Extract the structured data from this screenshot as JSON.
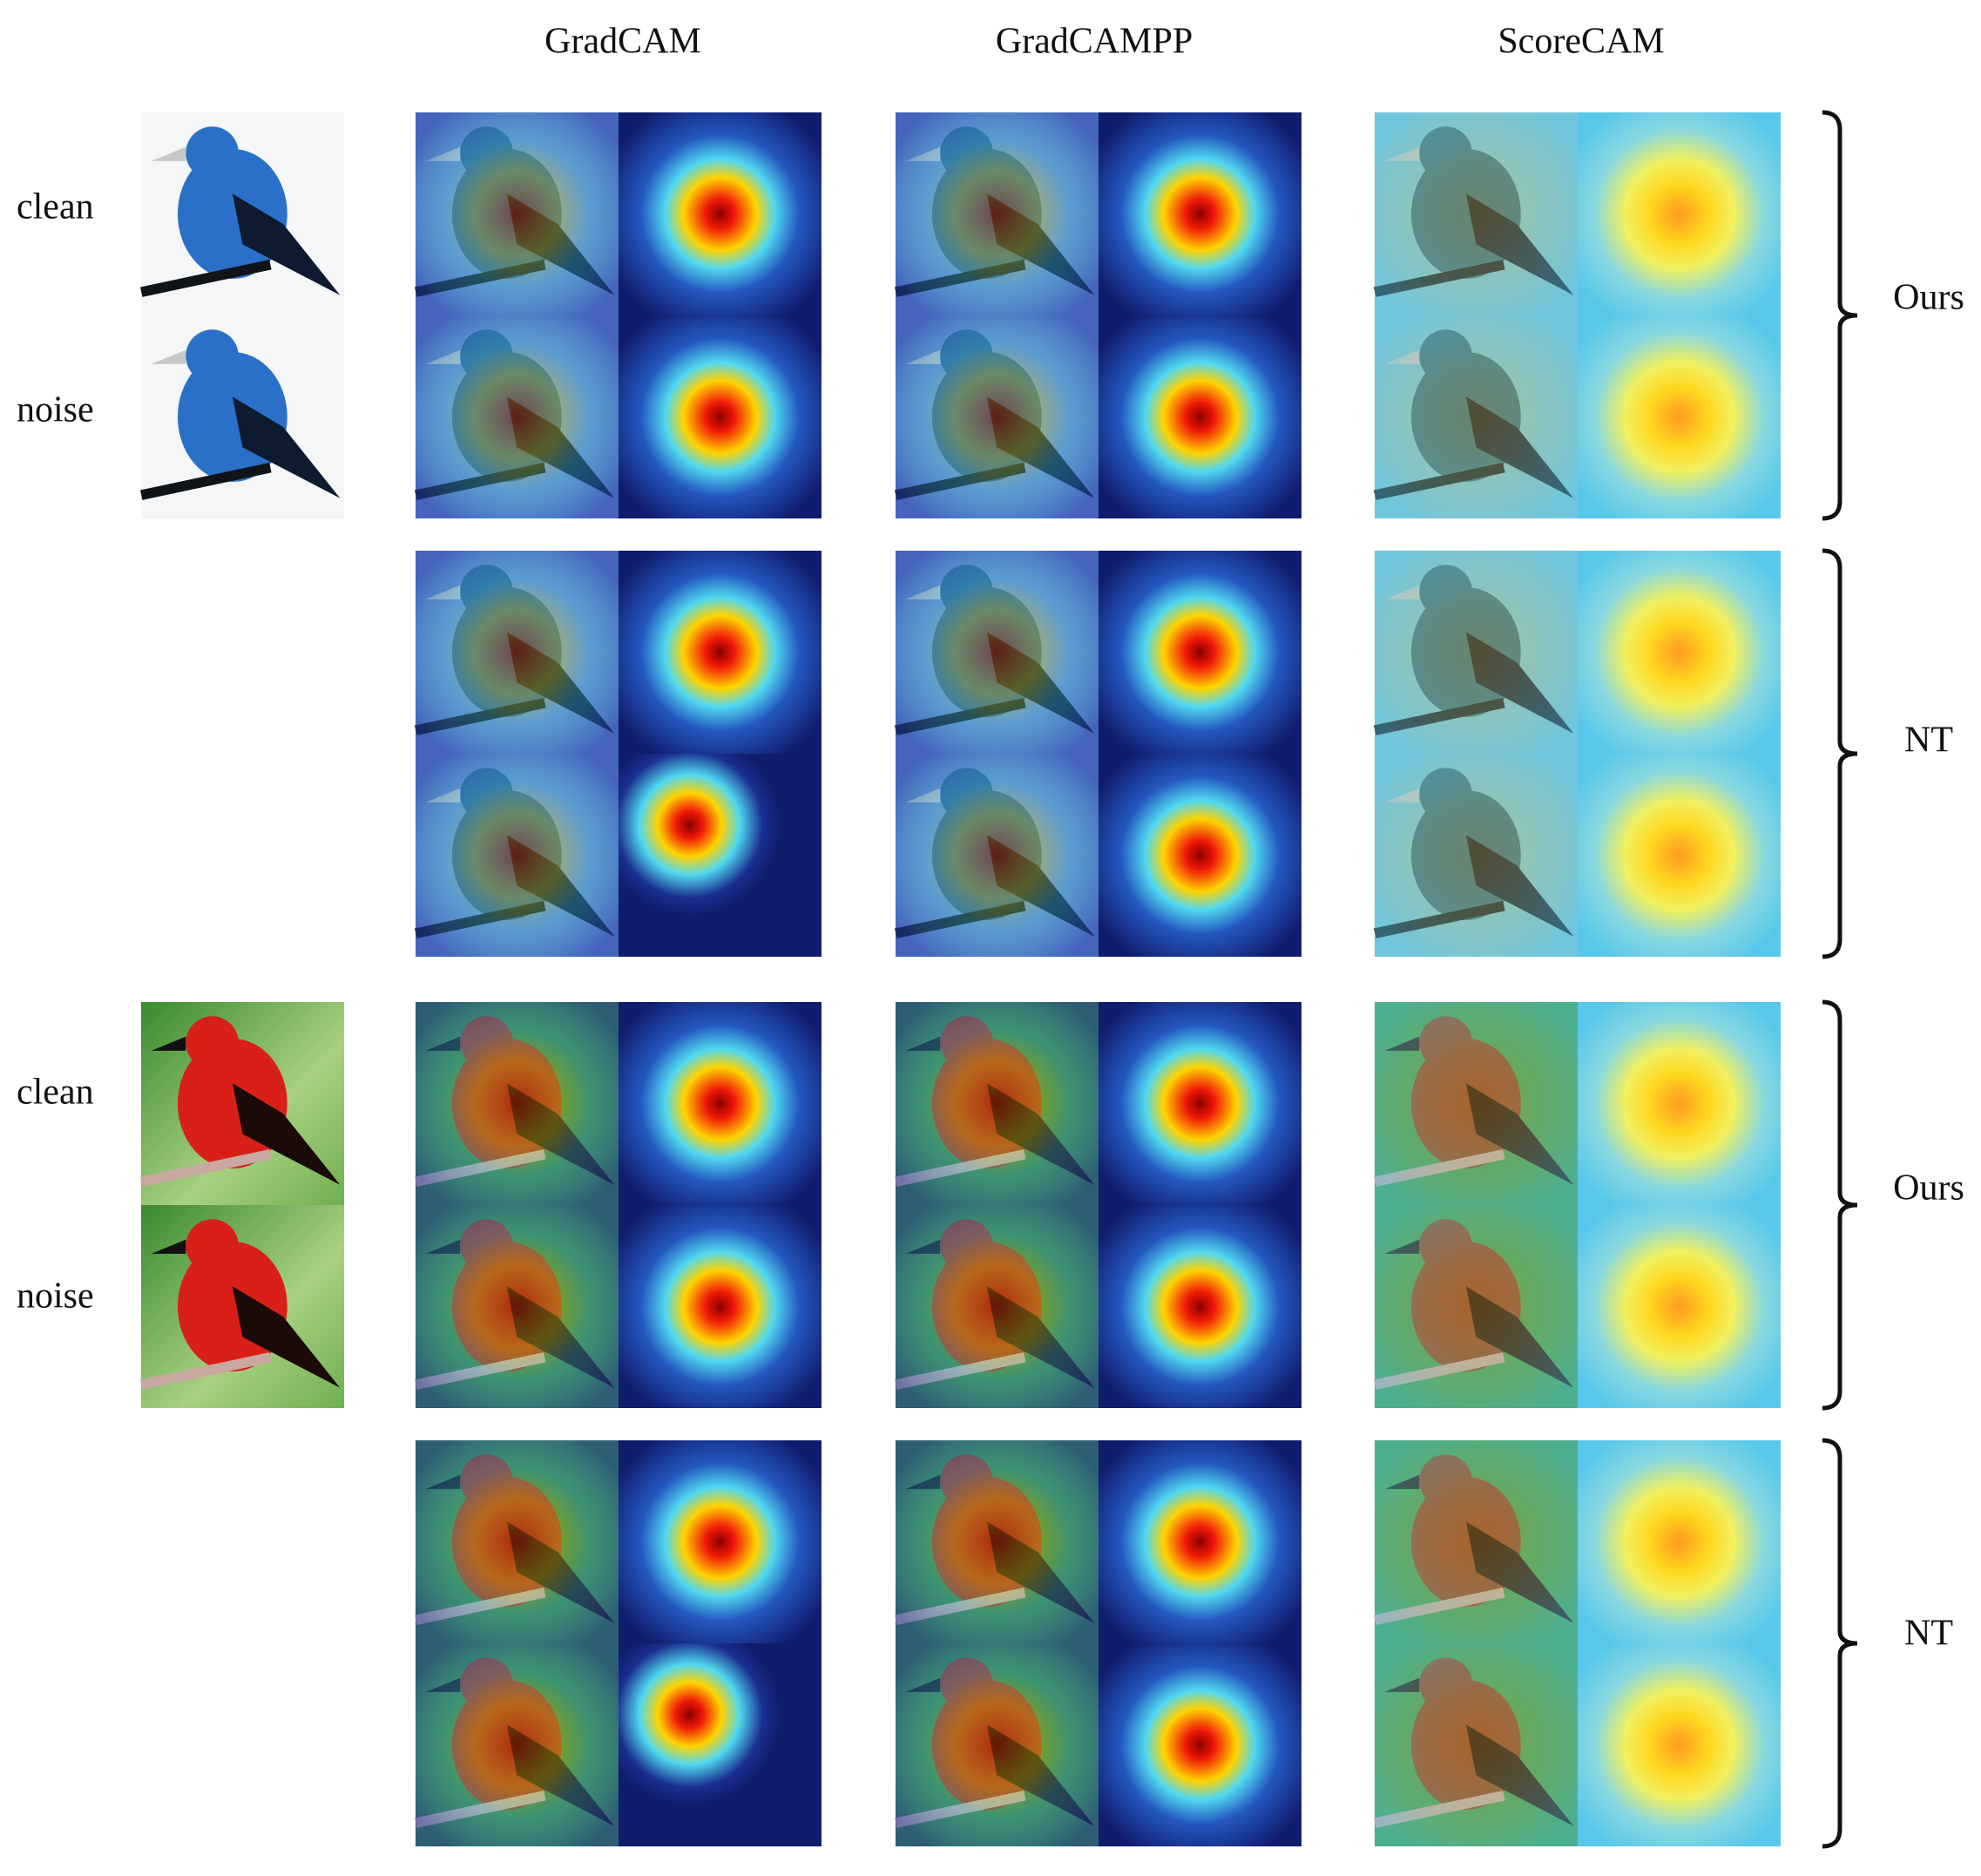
{
  "columns": [
    "GradCAM",
    "GradCAMPP",
    "ScoreCAM"
  ],
  "row_labels": [
    "clean",
    "noise",
    "clean",
    "noise"
  ],
  "group_labels": [
    "Ours",
    "NT",
    "Ours",
    "NT"
  ]
}
